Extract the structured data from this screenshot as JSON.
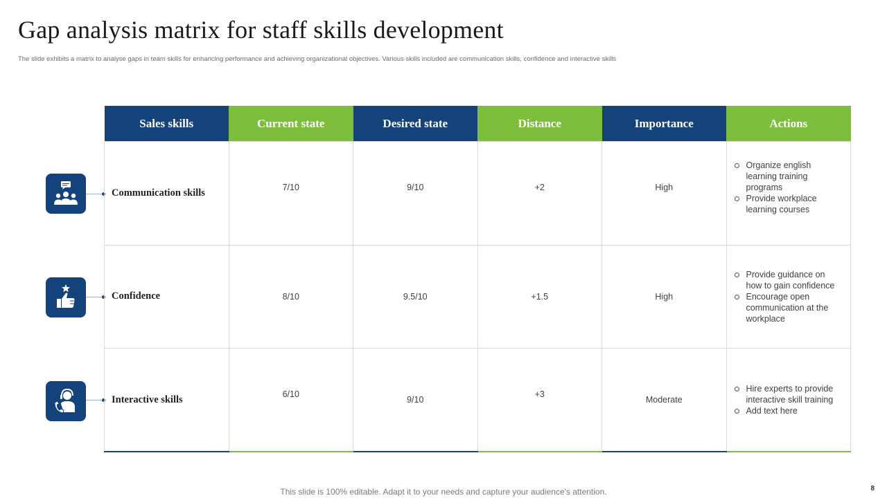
{
  "slide": {
    "title": "Gap analysis matrix for staff skills development",
    "subtitle": "The slide exhibits a matrix to analyse gaps in team skills for enhancing performance and achieving organizational objectives. Various skills included are communication skills, confidence and interactive skills",
    "footer": "This slide is 100% editable. Adapt it to your needs and capture your audience's attention.",
    "page_number": "8"
  },
  "colors": {
    "primary_blue": "#14427a",
    "accent_green": "#7dbe3c"
  },
  "table": {
    "headers": [
      "Sales skills",
      "Current state",
      "Desired state",
      "Distance",
      "Importance",
      "Actions"
    ],
    "rows": [
      {
        "skill": "Communication skills",
        "icon": "team-chat-icon",
        "current": "7/10",
        "desired": "9/10",
        "distance": "+2",
        "importance": "High",
        "actions": [
          "Organize english learning training programs",
          "Provide workplace learning courses"
        ]
      },
      {
        "skill": "Confidence",
        "icon": "thumbs-up-star-icon",
        "current": "8/10",
        "desired": "9.5/10",
        "distance": "+1.5",
        "importance": "High",
        "actions": [
          "Provide guidance on how to gain confidence",
          "Encourage open communication at the workplace"
        ]
      },
      {
        "skill": "Interactive skills",
        "icon": "call-support-icon",
        "current": "6/10",
        "desired": "9/10",
        "distance": "+3",
        "importance": "Moderate",
        "actions": [
          "Hire experts to provide interactive skill training",
          "Add text here"
        ]
      }
    ]
  }
}
